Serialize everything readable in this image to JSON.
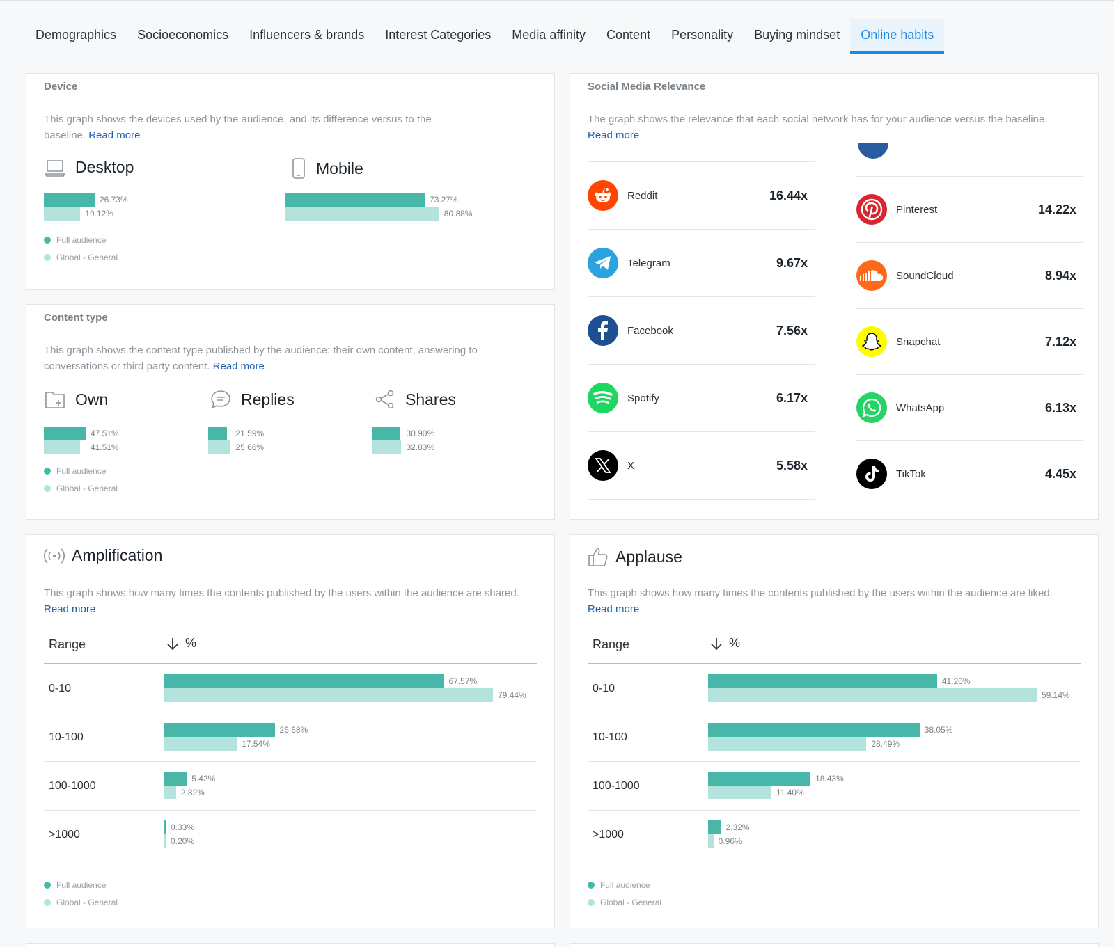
{
  "tabs": [
    {
      "label": "Demographics"
    },
    {
      "label": "Socioeconomics"
    },
    {
      "label": "Influencers & brands"
    },
    {
      "label": "Interest Categories"
    },
    {
      "label": "Media affinity"
    },
    {
      "label": "Content"
    },
    {
      "label": "Personality"
    },
    {
      "label": "Buying mindset"
    },
    {
      "label": "Online habits",
      "active": true
    }
  ],
  "legend": {
    "full": "Full audience",
    "global": "Global - General"
  },
  "read_more": "Read more",
  "device": {
    "title": "Device",
    "description": "This graph shows the devices used by the audience, and its difference versus to the baseline.",
    "items": [
      {
        "label": "Desktop",
        "icon": "laptop-icon",
        "full": 26.73,
        "global": 19.12,
        "full_label": "26.73%",
        "global_label": "19.12%"
      },
      {
        "label": "Mobile",
        "icon": "smartphone-icon",
        "full": 73.27,
        "global": 80.88,
        "full_label": "73.27%",
        "global_label": "80.88%"
      }
    ]
  },
  "content_type": {
    "title": "Content type",
    "description": "This graph shows the content type published by the audience: their own content, answering to conversations or third party content.",
    "items": [
      {
        "label": "Own",
        "icon": "folder-plus-icon",
        "full": 47.51,
        "global": 41.51,
        "full_label": "47.51%",
        "global_label": "41.51%"
      },
      {
        "label": "Replies",
        "icon": "chat-bubble-icon",
        "full": 21.59,
        "global": 25.66,
        "full_label": "21.59%",
        "global_label": "25.66%"
      },
      {
        "label": "Shares",
        "icon": "share-icon",
        "full": 30.9,
        "global": 32.83,
        "full_label": "30.90%",
        "global_label": "32.83%"
      }
    ]
  },
  "social": {
    "title": "Social Media Relevance",
    "description": "The graph shows the relevance that each social network has for your audience versus the baseline.",
    "left": [
      {
        "name": "Reddit",
        "value": "16.44x",
        "color": "#ff4500"
      },
      {
        "name": "Telegram",
        "value": "9.67x",
        "color": "#2aa3df"
      },
      {
        "name": "Facebook",
        "value": "7.56x",
        "color": "#1d4f91"
      },
      {
        "name": "Spotify",
        "value": "6.17x",
        "color": "#1ed760"
      },
      {
        "name": "X",
        "value": "5.58x",
        "color": "#000000"
      }
    ],
    "right": [
      {
        "name": "Pinterest",
        "value": "14.22x",
        "color": "#d8252f"
      },
      {
        "name": "SoundCloud",
        "value": "8.94x",
        "color": "#ff6a1a"
      },
      {
        "name": "Snapchat",
        "value": "7.12x",
        "color": "#fffc00"
      },
      {
        "name": "WhatsApp",
        "value": "6.13x",
        "color": "#25d366"
      },
      {
        "name": "TikTok",
        "value": "4.45x",
        "color": "#000000"
      }
    ]
  },
  "amplification": {
    "title": "Amplification",
    "description": "This graph shows how many times the contents published by the users within the audience are shared.",
    "col_range": "Range",
    "col_pct": "%",
    "rows": [
      {
        "range": "0-10",
        "full": 67.57,
        "global": 79.44,
        "full_label": "67.57%",
        "global_label": "79.44%"
      },
      {
        "range": "10-100",
        "full": 26.68,
        "global": 17.54,
        "full_label": "26.68%",
        "global_label": "17.54%"
      },
      {
        "range": "100-1000",
        "full": 5.42,
        "global": 2.82,
        "full_label": "5.42%",
        "global_label": "2.82%"
      },
      {
        "range": ">1000",
        "full": 0.33,
        "global": 0.2,
        "full_label": "0.33%",
        "global_label": "0.20%"
      }
    ]
  },
  "applause": {
    "title": "Applause",
    "description": "This graph shows how many times the contents published by the users within the audience are liked.",
    "col_range": "Range",
    "col_pct": "%",
    "rows": [
      {
        "range": "0-10",
        "full": 41.2,
        "global": 59.14,
        "full_label": "41.20%",
        "global_label": "59.14%"
      },
      {
        "range": "10-100",
        "full": 38.05,
        "global": 28.49,
        "full_label": "38.05%",
        "global_label": "28.49%"
      },
      {
        "range": "100-1000",
        "full": 18.43,
        "global": 11.4,
        "full_label": "18.43%",
        "global_label": "11.40%"
      },
      {
        "range": ">1000",
        "full": 2.32,
        "global": 0.96,
        "full_label": "2.32%",
        "global_label": "0.96%"
      }
    ]
  }
}
